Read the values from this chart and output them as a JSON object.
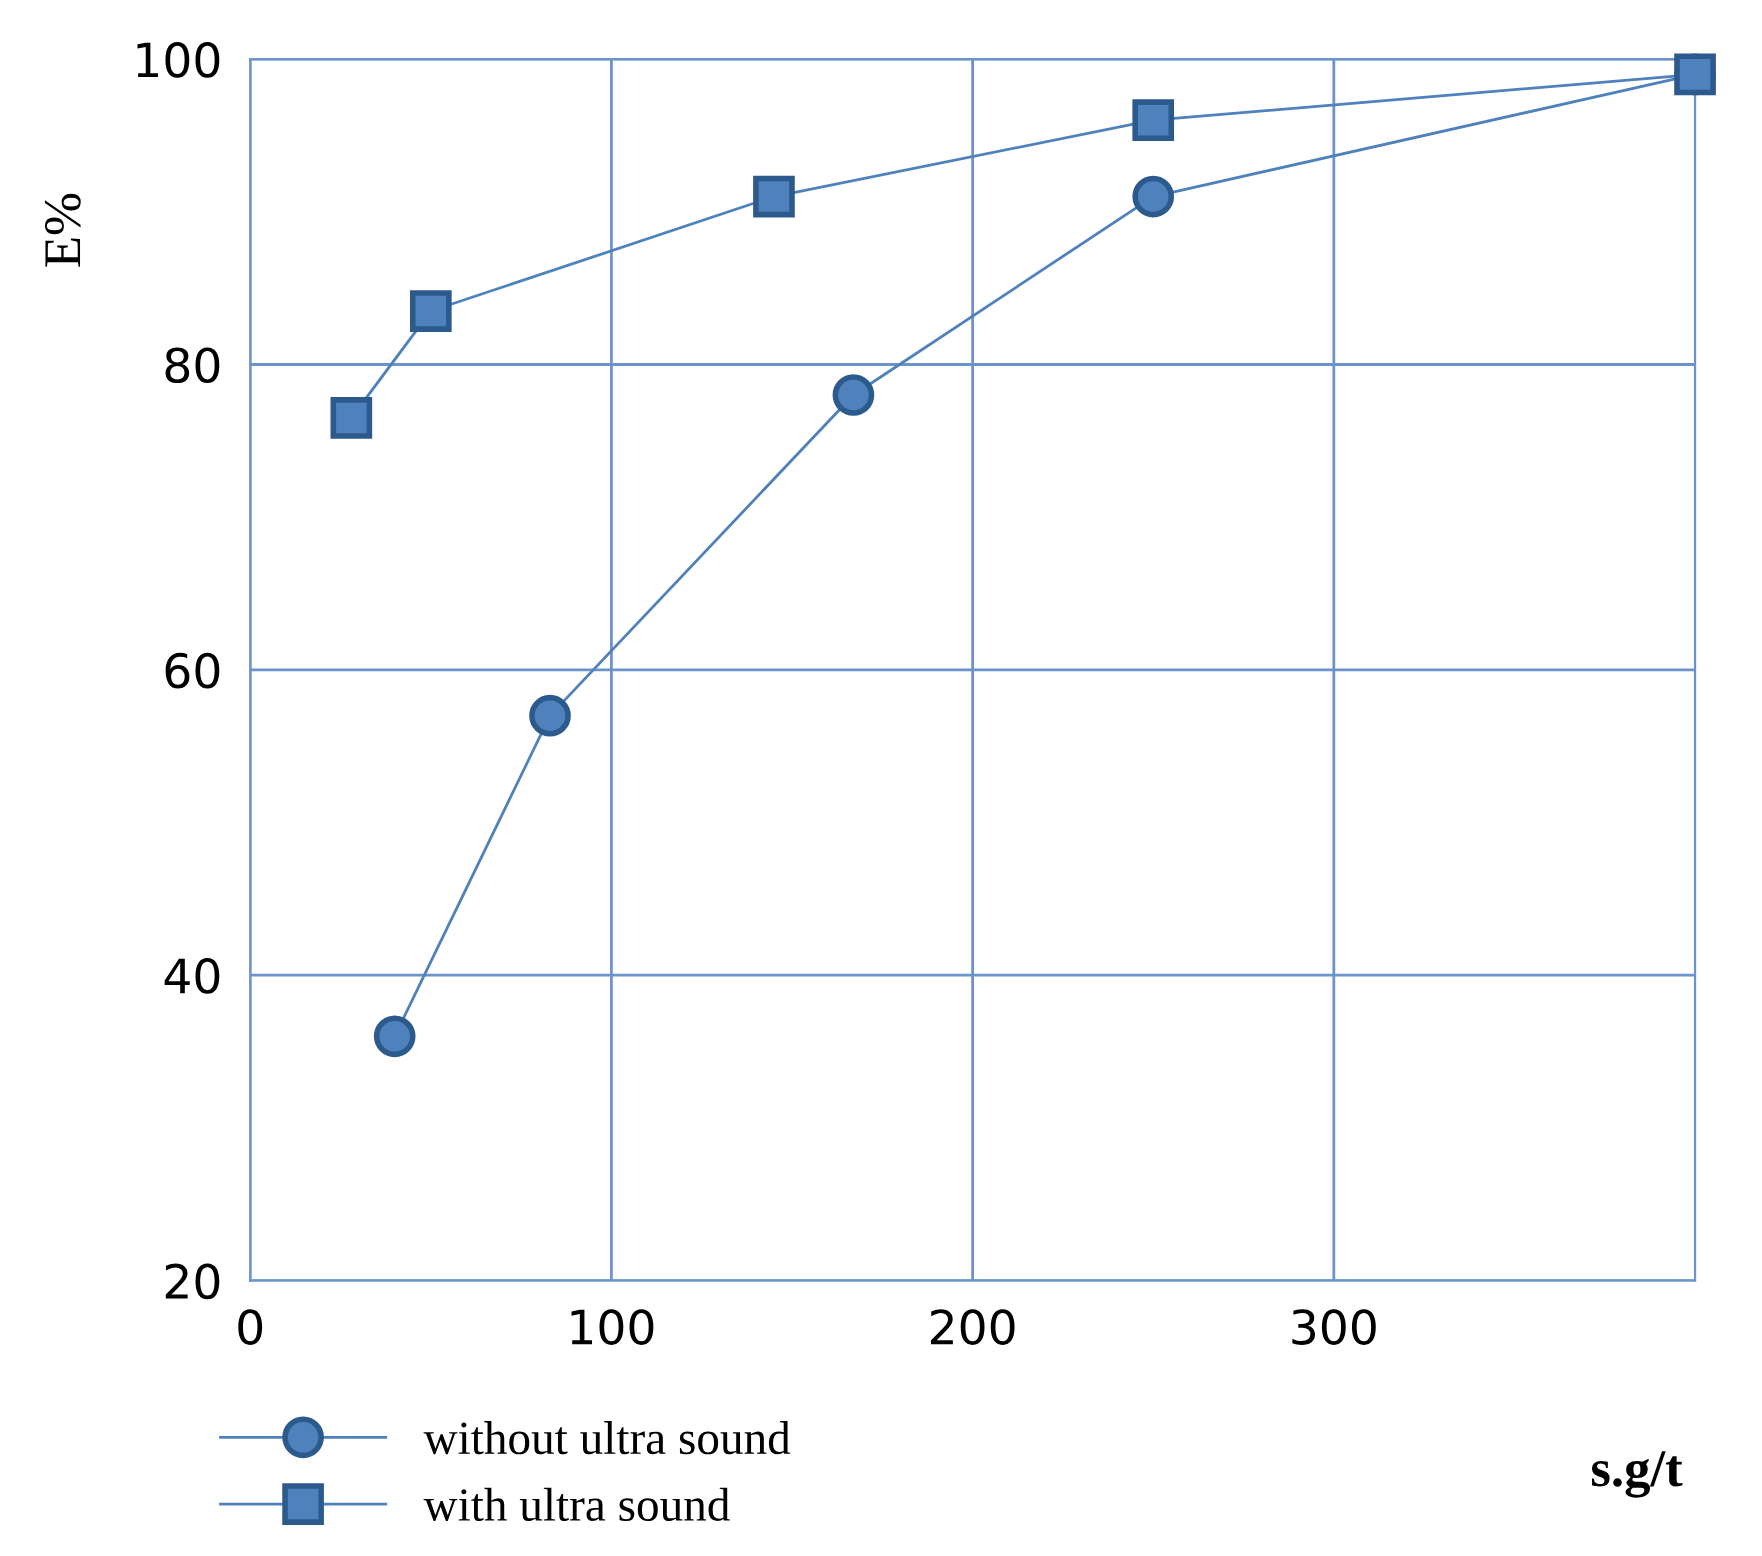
{
  "chart_data": {
    "type": "line",
    "xlabel": "s.g/t",
    "ylabel": "E%",
    "xlim": [
      0,
      400
    ],
    "ylim": [
      20,
      100
    ],
    "xticks": [
      0,
      100,
      200,
      300
    ],
    "yticks": [
      20,
      40,
      60,
      80,
      100
    ],
    "grid": true,
    "legend": "bottom left",
    "series": [
      {
        "name": "without ultra sound",
        "color": "#4f81bd",
        "marker": "circle",
        "x": [
          40,
          83,
          167,
          250,
          400
        ],
        "values": [
          36,
          57,
          78,
          91,
          99
        ]
      },
      {
        "name": "with ultra sound",
        "color": "#4f81bd",
        "marker": "square",
        "x": [
          28,
          50,
          145,
          250,
          400
        ],
        "values": [
          76.5,
          83.5,
          91,
          96,
          99
        ]
      }
    ]
  }
}
